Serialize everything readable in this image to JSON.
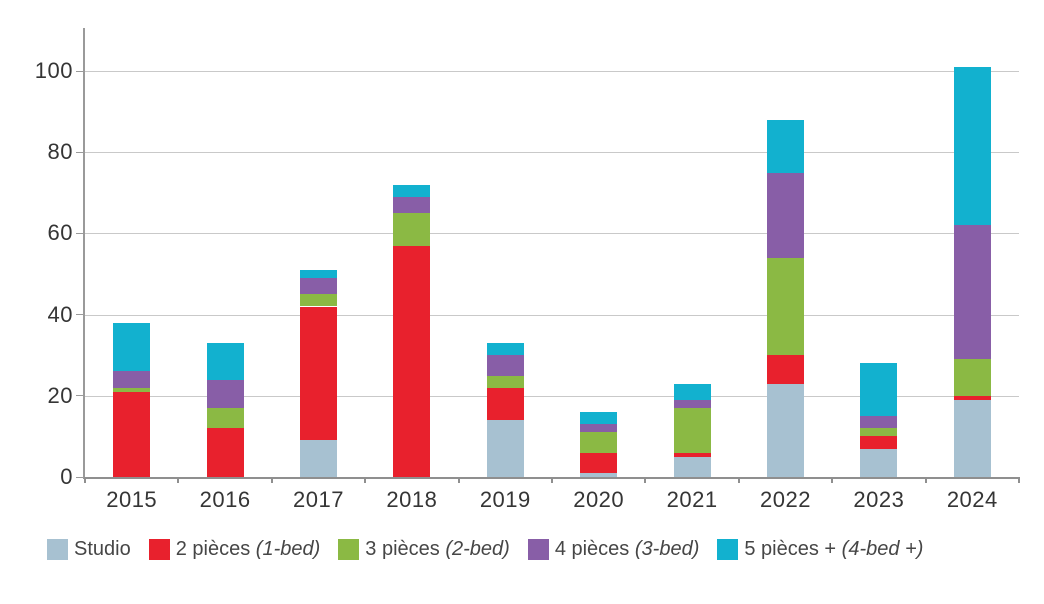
{
  "chart_data": {
    "type": "bar",
    "stacked": true,
    "title": "",
    "xlabel": "",
    "ylabel": "",
    "grid": true,
    "legend_position": "bottom",
    "ylim": [
      0,
      110
    ],
    "yticks": [
      0,
      20,
      40,
      60,
      80,
      100
    ],
    "categories": [
      "2015",
      "2016",
      "2017",
      "2018",
      "2019",
      "2020",
      "2021",
      "2022",
      "2023",
      "2024"
    ],
    "series": [
      {
        "name": "Studio",
        "suffix": "",
        "color": "#a7c1d1",
        "values": [
          0,
          0,
          9,
          0,
          14,
          1,
          5,
          23,
          7,
          19
        ]
      },
      {
        "name": "2 pièces",
        "suffix": "(1-bed)",
        "color": "#e8212d",
        "values": [
          21,
          12,
          33,
          57,
          8,
          5,
          1,
          7,
          3,
          1
        ]
      },
      {
        "name": "3 pièces",
        "suffix": "(2-bed)",
        "color": "#8bb944",
        "values": [
          1,
          5,
          3,
          8,
          3,
          5,
          11,
          24,
          2,
          9
        ]
      },
      {
        "name": "4 pièces",
        "suffix": "(3-bed)",
        "color": "#885ea7",
        "values": [
          4,
          7,
          4,
          4,
          5,
          2,
          2,
          21,
          3,
          33
        ]
      },
      {
        "name": "5 pièces +",
        "suffix": "(4-bed +)",
        "color": "#12b1cf",
        "values": [
          12,
          9,
          2,
          3,
          3,
          3,
          4,
          13,
          13,
          39
        ]
      }
    ],
    "totals": [
      38,
      33,
      51,
      72,
      33,
      16,
      23,
      88,
      28,
      101
    ]
  },
  "style_colors": {
    "gridline": "#c9c9c9",
    "axis": "#8f8f8f",
    "tick_text": "#353535",
    "legend_text": "#464646",
    "background": "#ffffff"
  }
}
